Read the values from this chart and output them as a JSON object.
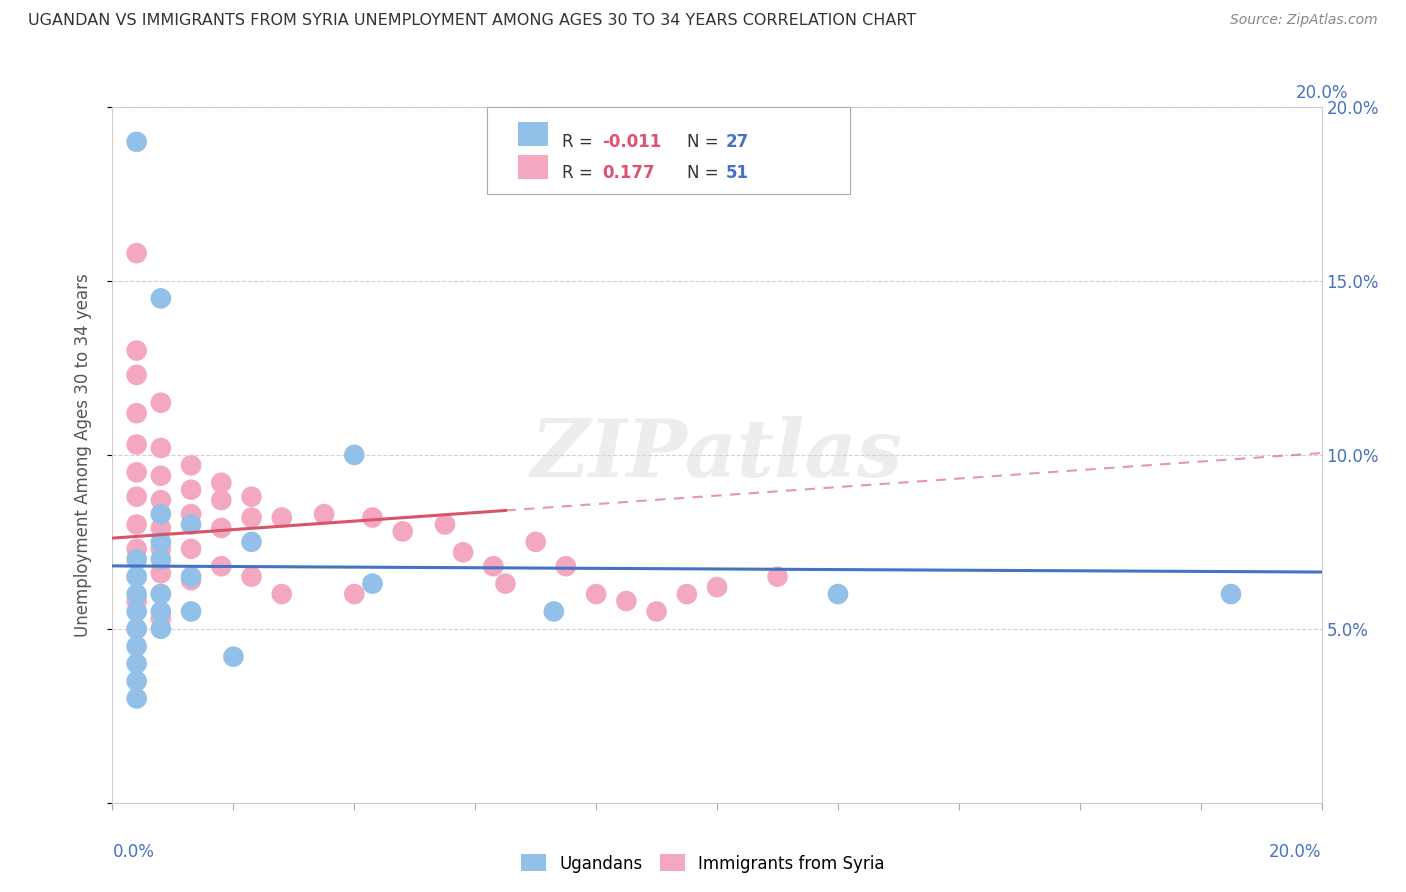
{
  "title": "UGANDAN VS IMMIGRANTS FROM SYRIA UNEMPLOYMENT AMONG AGES 30 TO 34 YEARS CORRELATION CHART",
  "source": "Source: ZipAtlas.com",
  "ylabel": "Unemployment Among Ages 30 to 34 years",
  "xlim": [
    0.0,
    0.2
  ],
  "ylim": [
    0.0,
    0.2
  ],
  "yticks": [
    0.0,
    0.05,
    0.1,
    0.15,
    0.2
  ],
  "ugandan_color": "#92c0e8",
  "syria_color": "#f4a8bf",
  "trendline_ugandan_color": "#4472c4",
  "trendline_syria_color": "#d9536a",
  "right_axis_color": "#4472c4",
  "watermark": "ZIPatlas",
  "watermark_color": "#d8d8d8",
  "ugandan_points_x": [
    0.004,
    0.004,
    0.004,
    0.004,
    0.004,
    0.004,
    0.004,
    0.004,
    0.004,
    0.004,
    0.008,
    0.008,
    0.008,
    0.008,
    0.008,
    0.008,
    0.008,
    0.013,
    0.013,
    0.013,
    0.02,
    0.023,
    0.04,
    0.043,
    0.073,
    0.12,
    0.185
  ],
  "ugandan_points_y": [
    0.19,
    0.07,
    0.065,
    0.06,
    0.055,
    0.05,
    0.045,
    0.04,
    0.035,
    0.03,
    0.145,
    0.083,
    0.075,
    0.07,
    0.06,
    0.055,
    0.05,
    0.08,
    0.065,
    0.055,
    0.042,
    0.075,
    0.1,
    0.063,
    0.055,
    0.06,
    0.06
  ],
  "syria_points_x": [
    0.004,
    0.004,
    0.004,
    0.004,
    0.004,
    0.004,
    0.004,
    0.004,
    0.004,
    0.004,
    0.004,
    0.004,
    0.008,
    0.008,
    0.008,
    0.008,
    0.008,
    0.008,
    0.008,
    0.008,
    0.008,
    0.013,
    0.013,
    0.013,
    0.013,
    0.013,
    0.018,
    0.018,
    0.018,
    0.018,
    0.023,
    0.023,
    0.023,
    0.028,
    0.028,
    0.035,
    0.04,
    0.043,
    0.048,
    0.055,
    0.058,
    0.063,
    0.065,
    0.07,
    0.075,
    0.08,
    0.085,
    0.09,
    0.095,
    0.1,
    0.11
  ],
  "syria_points_y": [
    0.158,
    0.13,
    0.123,
    0.112,
    0.103,
    0.095,
    0.088,
    0.08,
    0.073,
    0.065,
    0.058,
    0.05,
    0.115,
    0.102,
    0.094,
    0.087,
    0.079,
    0.073,
    0.066,
    0.06,
    0.053,
    0.097,
    0.09,
    0.083,
    0.073,
    0.064,
    0.092,
    0.087,
    0.079,
    0.068,
    0.088,
    0.082,
    0.065,
    0.082,
    0.06,
    0.083,
    0.06,
    0.082,
    0.078,
    0.08,
    0.072,
    0.068,
    0.063,
    0.075,
    0.068,
    0.06,
    0.058,
    0.055,
    0.06,
    0.062,
    0.065
  ],
  "background_color": "#ffffff",
  "grid_color": "#cccccc"
}
